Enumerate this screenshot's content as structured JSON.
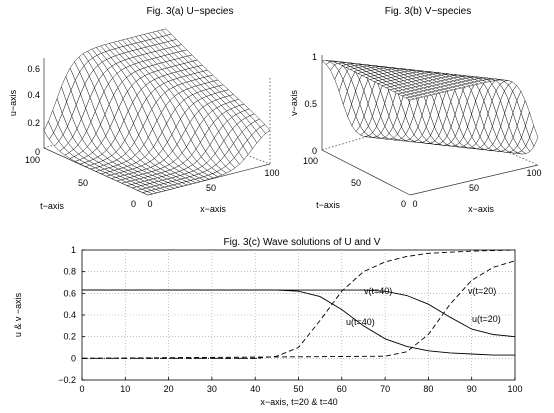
{
  "figure": {
    "panel_a": {
      "title": "Fig. 3(a) U−species",
      "zlabel": "u−axis",
      "ylabel": "t−axis",
      "xlabel": "x−axis",
      "z_ticks": [
        "0",
        "0.2",
        "0.4",
        "0.6"
      ],
      "t_ticks": [
        "100",
        "50",
        "0"
      ],
      "x_ticks": [
        "0",
        "50",
        "100"
      ]
    },
    "panel_b": {
      "title": "Fig. 3(b) V−species",
      "zlabel": "v−axis",
      "ylabel": "t−axis",
      "xlabel": "x−axis",
      "z_ticks": [
        "0",
        "0.5",
        "1"
      ],
      "t_ticks": [
        "100",
        "50",
        "0"
      ],
      "x_ticks": [
        "0",
        "50",
        "100"
      ]
    }
  },
  "chart_data": [
    {
      "type": "surface",
      "title": "Fig. 3(a) U−species",
      "xlabel": "x−axis",
      "ylabel": "t−axis",
      "zlabel": "u−axis",
      "xlim": [
        0,
        100
      ],
      "ylim": [
        0,
        100
      ],
      "zlim": [
        0,
        0.7
      ],
      "colors": {
        "mesh_face": "#ffffff",
        "mesh_edge": "#111111"
      }
    },
    {
      "type": "surface",
      "title": "Fig. 3(b) V−species",
      "xlabel": "x−axis",
      "ylabel": "t−axis",
      "zlabel": "v−axis",
      "xlim": [
        0,
        100
      ],
      "ylim": [
        0,
        100
      ],
      "zlim": [
        0,
        1
      ],
      "colors": {
        "mesh_face": "#ffffff",
        "mesh_edge": "#111111"
      }
    },
    {
      "type": "line",
      "title": "Fig. 3(c) Wave solutions of U and V",
      "xlabel": "x−axis,  t=20  &  t=40",
      "ylabel": "u & v −axis",
      "xlim": [
        0,
        100
      ],
      "ylim": [
        -0.2,
        1.0
      ],
      "x_ticks": [
        0,
        10,
        20,
        30,
        40,
        50,
        60,
        70,
        80,
        90,
        100
      ],
      "y_ticks": [
        -0.2,
        0,
        0.2,
        0.4,
        0.6,
        0.8,
        1
      ],
      "y_tick_labels": [
        "−0.2",
        "0",
        "0.2",
        "0.4",
        "0.6",
        "0.8",
        "1"
      ],
      "grid": true,
      "series": [
        {
          "name": "u(t=40)",
          "style": "solid",
          "x": [
            0,
            40,
            45,
            50,
            55,
            60,
            65,
            70,
            75,
            80,
            85,
            90,
            95,
            100
          ],
          "y": [
            0.63,
            0.63,
            0.63,
            0.62,
            0.57,
            0.45,
            0.3,
            0.18,
            0.11,
            0.07,
            0.05,
            0.04,
            0.03,
            0.03
          ]
        },
        {
          "name": "u(t=20)",
          "style": "solid",
          "x": [
            0,
            60,
            65,
            70,
            75,
            80,
            85,
            90,
            95,
            100
          ],
          "y": [
            0.63,
            0.63,
            0.63,
            0.62,
            0.58,
            0.5,
            0.38,
            0.27,
            0.22,
            0.2
          ]
        },
        {
          "name": "v(t=40)",
          "style": "dashed",
          "x": [
            0,
            40,
            45,
            50,
            55,
            60,
            65,
            70,
            75,
            80,
            90,
            100
          ],
          "y": [
            0.0,
            0.0,
            0.02,
            0.1,
            0.35,
            0.62,
            0.8,
            0.89,
            0.94,
            0.97,
            0.99,
            1.0
          ]
        },
        {
          "name": "v(t=20)",
          "style": "dashed",
          "x": [
            0,
            70,
            75,
            80,
            85,
            90,
            95,
            100
          ],
          "y": [
            0.0,
            0.02,
            0.06,
            0.22,
            0.5,
            0.72,
            0.84,
            0.9
          ]
        }
      ],
      "annotations": [
        "v(t=40)",
        "v(t=20)",
        "u(t=40)",
        "u(t=20)"
      ]
    }
  ]
}
